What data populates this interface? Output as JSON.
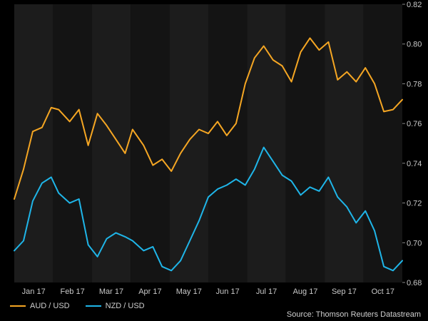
{
  "chart_data": {
    "type": "line",
    "title": "",
    "xlabel": "",
    "ylabel": "",
    "x_tick_labels": [
      "Jan 17",
      "Feb 17",
      "Mar 17",
      "Apr 17",
      "May 17",
      "Jun 17",
      "Jul 17",
      "Aug 17",
      "Sep 17",
      "Oct 17"
    ],
    "y_ticks": [
      "0.68",
      "0.70",
      "0.72",
      "0.74",
      "0.76",
      "0.78",
      "0.80",
      "0.82"
    ],
    "ylim": [
      0.68,
      0.82
    ],
    "xlim": [
      0,
      210
    ],
    "grid": false,
    "legend_position": "bottom-left",
    "series": [
      {
        "name": "AUD / USD",
        "color": "#f5a623",
        "x": [
          0,
          5,
          10,
          15,
          20,
          24,
          30,
          35,
          40,
          45,
          50,
          55,
          60,
          64,
          70,
          75,
          80,
          85,
          90,
          95,
          100,
          105,
          110,
          115,
          120,
          125,
          130,
          135,
          140,
          145,
          150,
          155,
          160,
          165,
          170,
          175,
          180,
          185,
          190,
          195,
          200,
          205,
          210
        ],
        "values": [
          0.722,
          0.737,
          0.756,
          0.758,
          0.768,
          0.767,
          0.761,
          0.767,
          0.749,
          0.765,
          0.759,
          0.752,
          0.745,
          0.757,
          0.749,
          0.739,
          0.742,
          0.736,
          0.745,
          0.752,
          0.757,
          0.755,
          0.761,
          0.754,
          0.76,
          0.78,
          0.793,
          0.799,
          0.792,
          0.789,
          0.781,
          0.796,
          0.803,
          0.797,
          0.801,
          0.782,
          0.786,
          0.781,
          0.788,
          0.78,
          0.766,
          0.767,
          0.772
        ]
      },
      {
        "name": "NZD / USD",
        "color": "#1fb5e8",
        "x": [
          0,
          5,
          10,
          15,
          20,
          24,
          30,
          35,
          40,
          45,
          50,
          55,
          60,
          64,
          70,
          75,
          80,
          85,
          90,
          95,
          100,
          105,
          110,
          115,
          120,
          125,
          130,
          135,
          140,
          145,
          150,
          155,
          160,
          165,
          170,
          175,
          180,
          185,
          190,
          195,
          200,
          205,
          210
        ],
        "values": [
          0.696,
          0.701,
          0.721,
          0.73,
          0.733,
          0.725,
          0.72,
          0.722,
          0.699,
          0.693,
          0.702,
          0.705,
          0.703,
          0.701,
          0.696,
          0.698,
          0.688,
          0.686,
          0.691,
          0.701,
          0.711,
          0.723,
          0.727,
          0.729,
          0.732,
          0.729,
          0.737,
          0.748,
          0.741,
          0.734,
          0.731,
          0.724,
          0.728,
          0.726,
          0.733,
          0.723,
          0.718,
          0.71,
          0.716,
          0.706,
          0.688,
          0.686,
          0.691
        ]
      }
    ],
    "source": "Source: Thomson Reuters Datastream"
  },
  "legend": {
    "aud_label": "AUD / USD",
    "nzd_label": "NZD / USD"
  },
  "footer": {
    "source": "Source: Thomson Reuters Datastream"
  },
  "colors": {
    "background": "#000000",
    "band_light": "#1c1c1c",
    "band_dark": "#141414",
    "axis_text": "#c8c8c8"
  }
}
